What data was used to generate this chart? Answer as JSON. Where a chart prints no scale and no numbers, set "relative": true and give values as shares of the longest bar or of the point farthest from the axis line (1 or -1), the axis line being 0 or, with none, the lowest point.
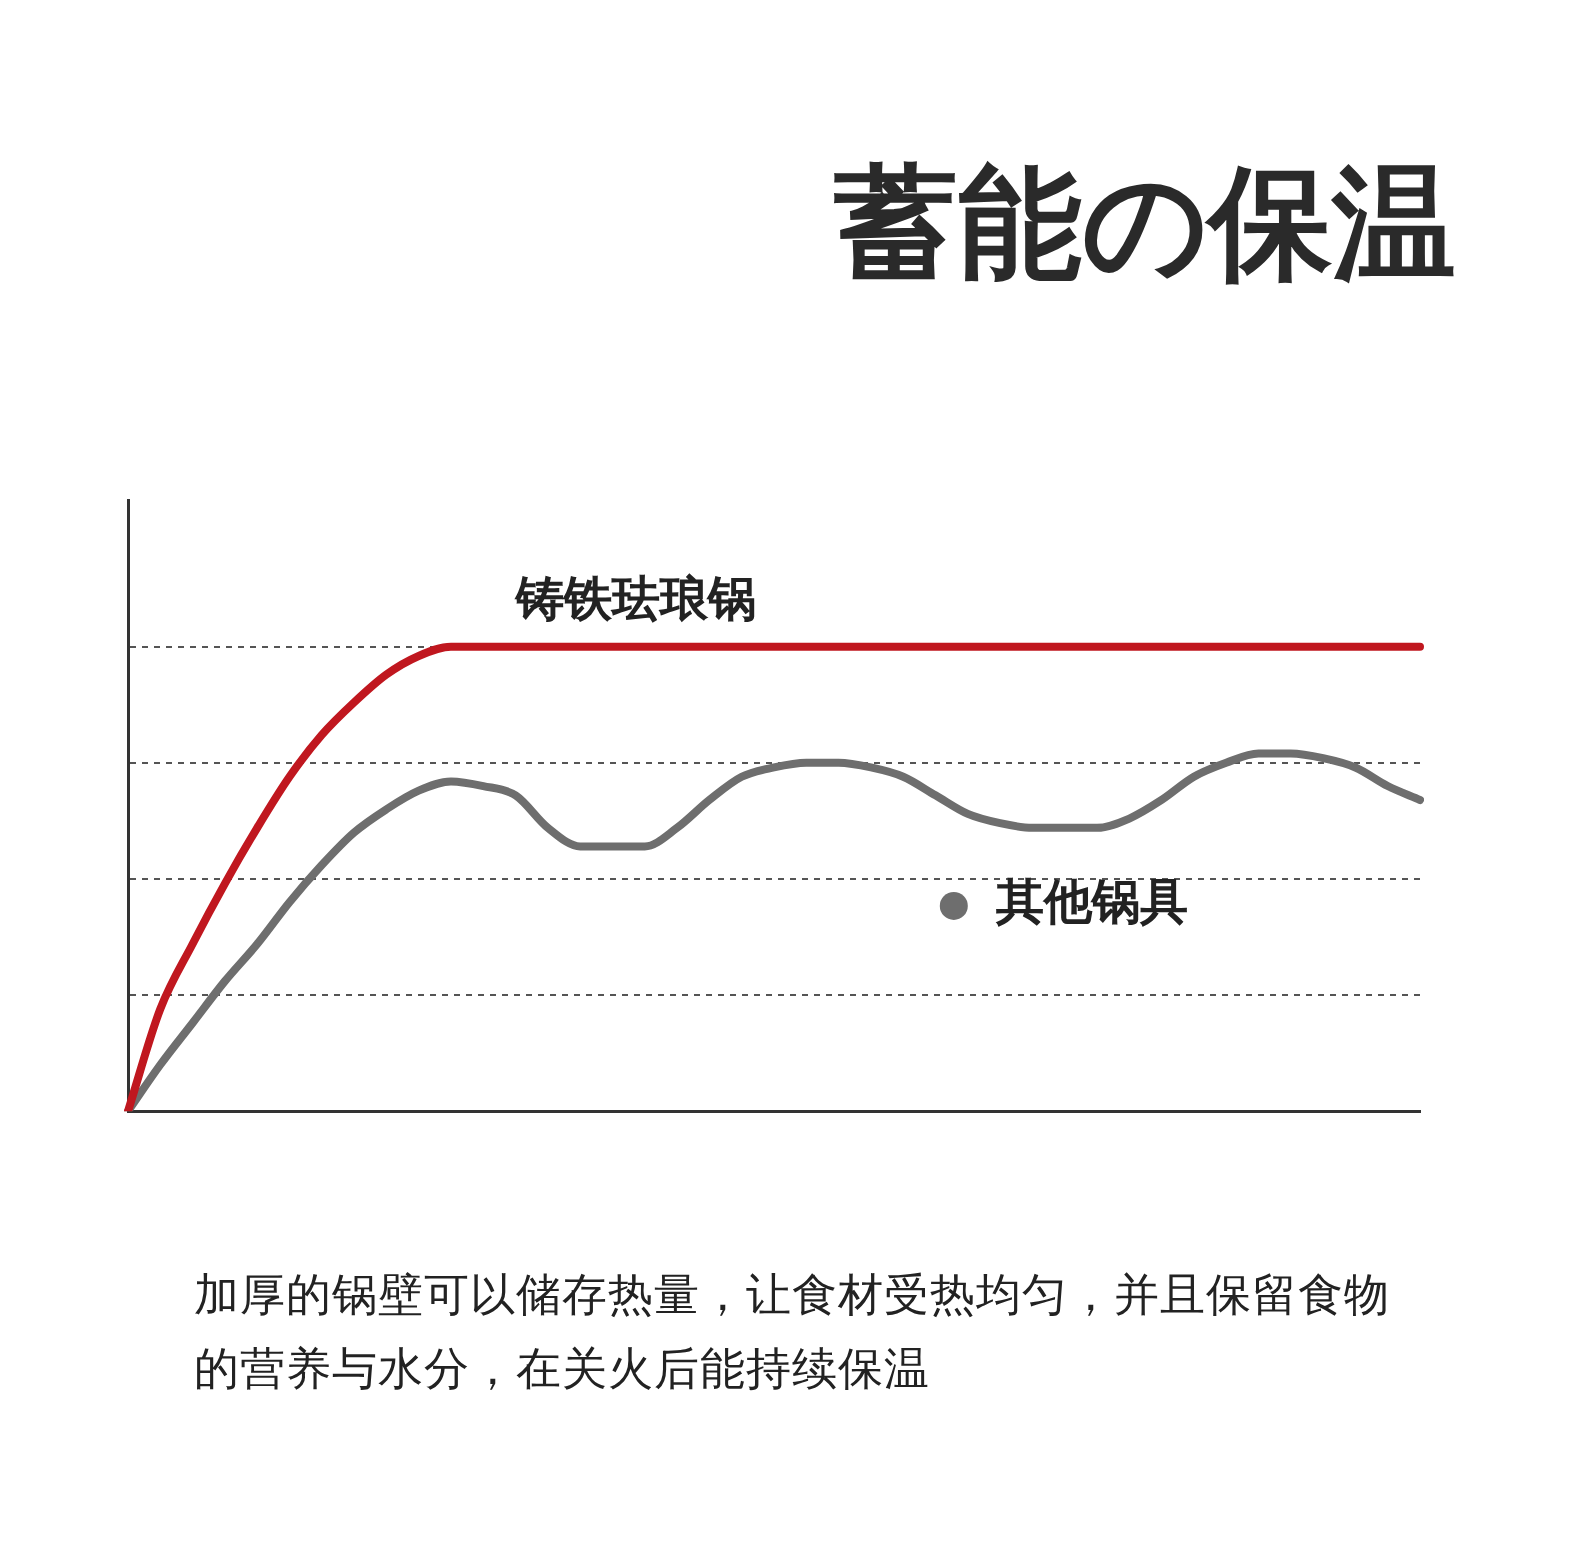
{
  "chart_data": {
    "type": "line",
    "title": "蓄能の保温",
    "relative": true,
    "grid": "y",
    "line_style": "solid",
    "categories": [
      null,
      null,
      null,
      null,
      null,
      null,
      null,
      null,
      null,
      null,
      null,
      null,
      null,
      null,
      null,
      null,
      null,
      null,
      null,
      null,
      null,
      null,
      null,
      null,
      null,
      null,
      null,
      null,
      null,
      null,
      null,
      null,
      null,
      null,
      null,
      null,
      null,
      null,
      null,
      null,
      null
    ],
    "series": [
      {
        "name": "铸铁珐琅锅",
        "color": "#c0171f",
        "values": [
          0,
          0.22,
          0.36,
          0.49,
          0.61,
          0.72,
          0.81,
          0.88,
          0.94,
          0.98,
          1,
          1,
          1,
          1,
          1,
          1,
          1,
          1,
          1,
          1,
          1,
          1,
          1,
          1,
          1,
          1,
          1,
          1,
          1,
          1,
          1,
          1,
          1,
          1,
          1,
          1,
          1,
          1,
          1,
          1,
          1
        ]
      },
      {
        "name": "其他锅具",
        "color": "#6e6e6e",
        "values": [
          0,
          0.1,
          0.19,
          0.28,
          0.36,
          0.45,
          0.53,
          0.6,
          0.65,
          0.69,
          0.71,
          0.7,
          0.68,
          0.61,
          0.57,
          0.57,
          0.57,
          0.61,
          0.67,
          0.72,
          0.74,
          0.75,
          0.75,
          0.74,
          0.72,
          0.68,
          0.64,
          0.62,
          0.61,
          0.61,
          0.61,
          0.63,
          0.67,
          0.72,
          0.75,
          0.77,
          0.77,
          0.76,
          0.74,
          0.7,
          0.67
        ]
      }
    ],
    "annotations": [
      "加厚的锅壁可以储存热量，让食材受热均匀，并且保留食物的营养与水分，在关火后能持续保温"
    ]
  }
}
